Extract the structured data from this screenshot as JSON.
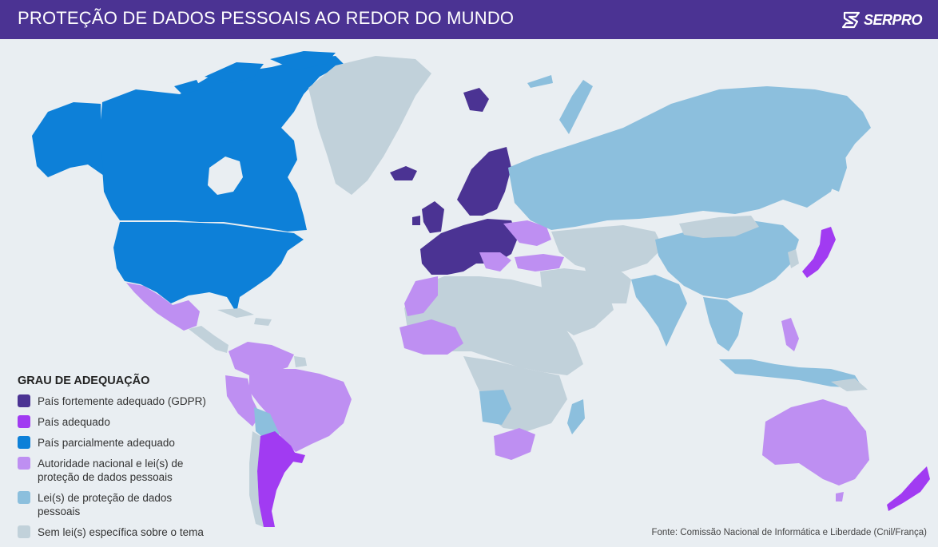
{
  "header": {
    "title": "PROTEÇÃO DE DADOS PESSOAIS AO REDOR DO MUNDO",
    "logo_text": "SERPRO"
  },
  "colors": {
    "header_bg": "#4b3393",
    "ocean": "#e9eef2",
    "gdpr": "#4b3393",
    "adequate": "#a13bf2",
    "partial": "#0d80d8",
    "authority_and_law": "#be8ff2",
    "law_only": "#8cbfdd",
    "no_law": "#c1d1da"
  },
  "legend": {
    "title": "GRAU DE ADEQUAÇÃO",
    "items": [
      {
        "label": "País fortemente adequado (GDPR)",
        "color": "#4b3393"
      },
      {
        "label": "País adequado",
        "color": "#a13bf2"
      },
      {
        "label": "País parcialmente adequado",
        "color": "#0d80d8"
      },
      {
        "label": "Autoridade nacional e lei(s) de proteção de dados pessoais",
        "color": "#be8ff2"
      },
      {
        "label": "Lei(s) de proteção de dados pessoais",
        "color": "#8cbfdd"
      },
      {
        "label": "Sem lei(s) específica sobre o tema",
        "color": "#c1d1da"
      }
    ]
  },
  "source": "Fonte: Comissão Nacional de Informática e Liberdade (Cnil/França)"
}
